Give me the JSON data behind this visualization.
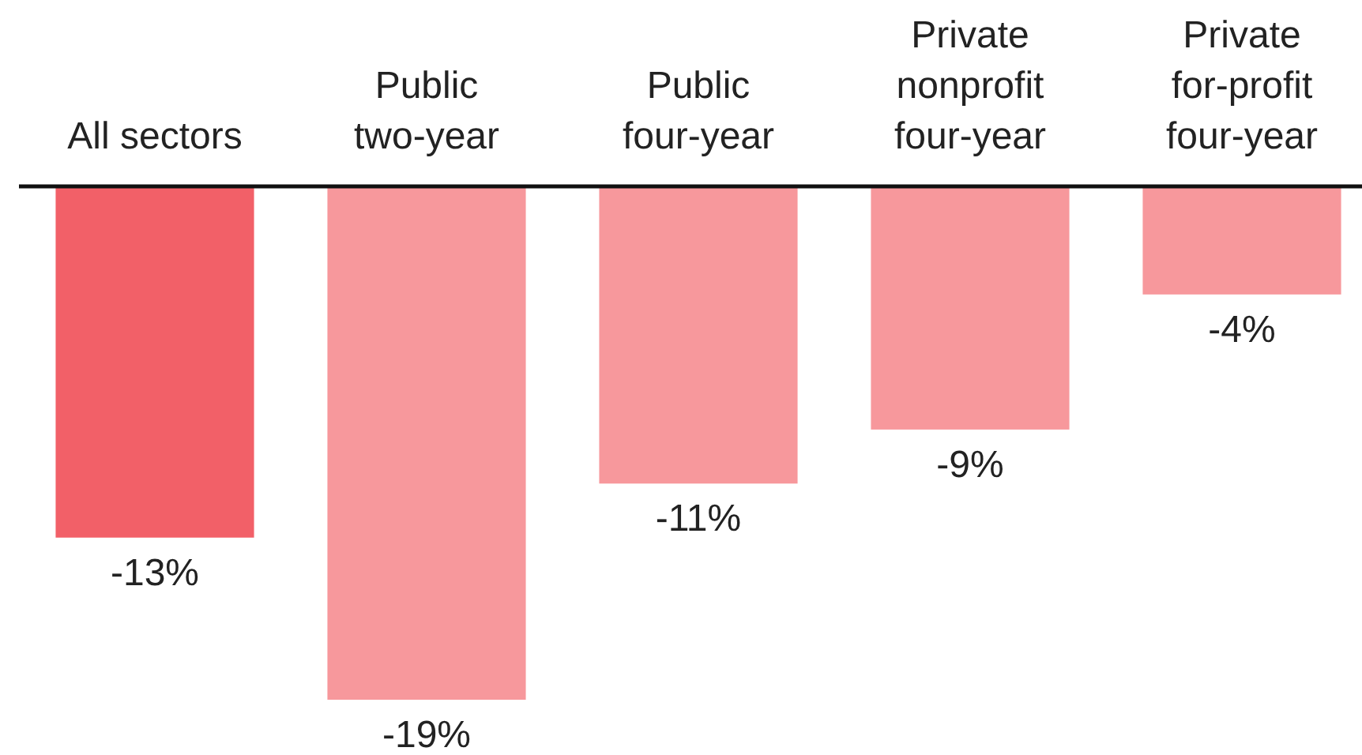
{
  "chart_data": {
    "type": "bar",
    "categories": [
      "All sectors",
      "Public\ntwo-year",
      "Public\nfour-year",
      "Private\nnonprofit\nfour-year",
      "Private\nfor-profit\nfour-year"
    ],
    "values": [
      -13,
      -19,
      -11,
      -9,
      -4
    ],
    "colors": [
      "#f26068",
      "#f7989c",
      "#f7989c",
      "#f7989c",
      "#f7989c"
    ],
    "value_labels": [
      "-13%",
      "-19%",
      "-11%",
      "-9%",
      "-4%"
    ]
  }
}
